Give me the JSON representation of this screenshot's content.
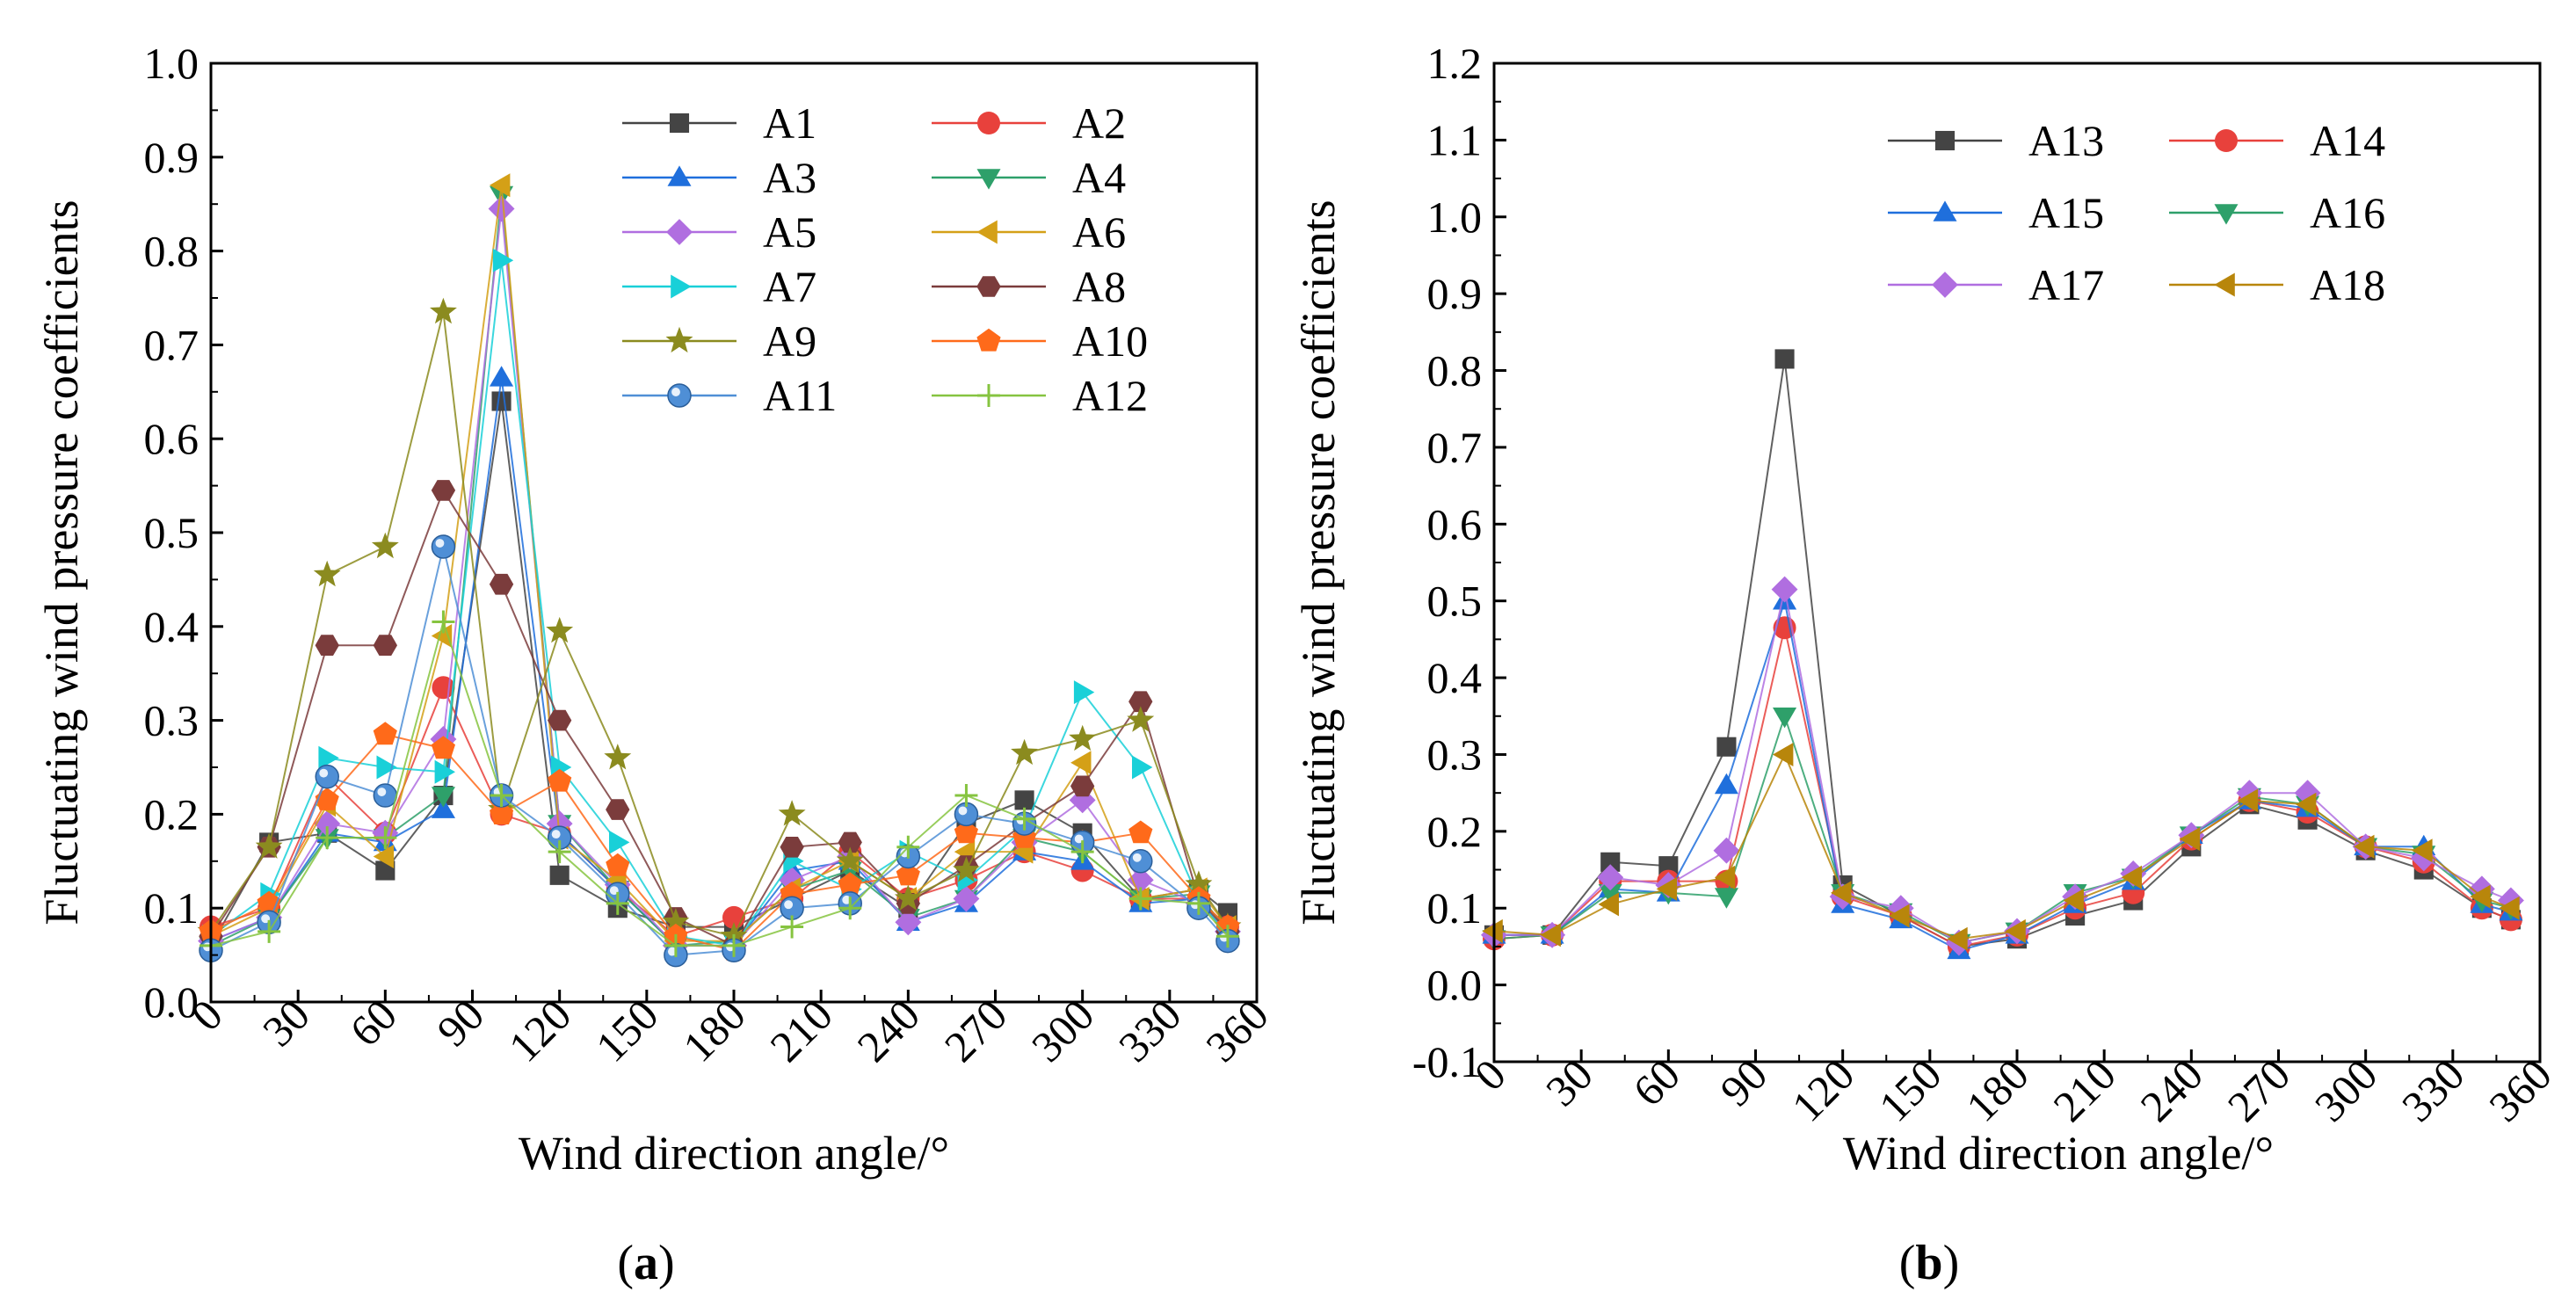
{
  "chart_data": [
    {
      "type": "line",
      "panel_label": "(a)",
      "panel_letter": "a",
      "xlabel": "Wind direction angle/°",
      "ylabel": "Fluctuating wind pressure coefficients",
      "xlim": [
        0,
        360
      ],
      "ylim": [
        0,
        1.0
      ],
      "xticks": [
        "0",
        "30",
        "60",
        "90",
        "120",
        "150",
        "180",
        "210",
        "240",
        "270",
        "300",
        "330",
        "360"
      ],
      "yticks": [
        "0.0",
        "0.1",
        "0.2",
        "0.3",
        "0.4",
        "0.5",
        "0.6",
        "0.7",
        "0.8",
        "0.9",
        "1.0"
      ],
      "x": [
        0,
        20,
        40,
        60,
        80,
        100,
        120,
        140,
        160,
        180,
        200,
        220,
        240,
        260,
        280,
        300,
        320,
        340,
        350
      ],
      "legend_position": "top-right",
      "series": [
        {
          "name": "A1",
          "color": "#444444",
          "marker": "square",
          "values": [
            0.06,
            0.17,
            0.18,
            0.14,
            0.22,
            0.64,
            0.135,
            0.1,
            0.08,
            0.08,
            0.11,
            0.14,
            0.1,
            0.19,
            0.215,
            0.18,
            0.11,
            0.12,
            0.095
          ]
        },
        {
          "name": "A2",
          "color": "#e8413c",
          "marker": "circle",
          "values": [
            0.08,
            0.1,
            0.24,
            0.18,
            0.335,
            0.2,
            0.18,
            0.12,
            0.07,
            0.09,
            0.11,
            0.16,
            0.11,
            0.13,
            0.16,
            0.14,
            0.11,
            0.11,
            0.08
          ]
        },
        {
          "name": "A3",
          "color": "#1f6fdc",
          "marker": "triangle-up",
          "values": [
            0.065,
            0.09,
            0.18,
            0.17,
            0.205,
            0.665,
            0.18,
            0.12,
            0.06,
            0.06,
            0.14,
            0.15,
            0.085,
            0.105,
            0.16,
            0.15,
            0.105,
            0.11,
            0.07
          ]
        },
        {
          "name": "A4",
          "color": "#2ea06a",
          "marker": "triangle-down",
          "values": [
            0.06,
            0.09,
            0.175,
            0.175,
            0.22,
            0.86,
            0.19,
            0.12,
            0.06,
            0.065,
            0.12,
            0.14,
            0.09,
            0.11,
            0.175,
            0.16,
            0.11,
            0.115,
            0.075
          ]
        },
        {
          "name": "A5",
          "color": "#b06ee0",
          "marker": "diamond",
          "values": [
            0.065,
            0.09,
            0.19,
            0.18,
            0.28,
            0.845,
            0.19,
            0.125,
            0.06,
            0.06,
            0.13,
            0.155,
            0.085,
            0.11,
            0.17,
            0.215,
            0.13,
            0.105,
            0.075
          ]
        },
        {
          "name": "A6",
          "color": "#d4a017",
          "marker": "triangle-left",
          "values": [
            0.07,
            0.1,
            0.21,
            0.155,
            0.39,
            0.87,
            0.175,
            0.13,
            0.065,
            0.065,
            0.12,
            0.15,
            0.11,
            0.16,
            0.16,
            0.255,
            0.11,
            0.12,
            0.08
          ]
        },
        {
          "name": "A7",
          "color": "#19d0d8",
          "marker": "triangle-right",
          "values": [
            0.07,
            0.115,
            0.26,
            0.25,
            0.245,
            0.79,
            0.25,
            0.17,
            0.07,
            0.06,
            0.15,
            0.12,
            0.16,
            0.13,
            0.185,
            0.33,
            0.25,
            0.11,
            0.07
          ]
        },
        {
          "name": "A8",
          "color": "#7b3c3c",
          "marker": "hexagon",
          "values": [
            0.07,
            0.165,
            0.38,
            0.38,
            0.545,
            0.445,
            0.3,
            0.205,
            0.09,
            0.06,
            0.165,
            0.17,
            0.105,
            0.145,
            0.19,
            0.23,
            0.32,
            0.11,
            0.075
          ]
        },
        {
          "name": "A9",
          "color": "#8b8b1f",
          "marker": "star",
          "values": [
            0.075,
            0.165,
            0.455,
            0.485,
            0.735,
            0.205,
            0.395,
            0.26,
            0.085,
            0.07,
            0.2,
            0.15,
            0.11,
            0.14,
            0.265,
            0.28,
            0.3,
            0.125,
            0.08
          ]
        },
        {
          "name": "A10",
          "color": "#ff6a1a",
          "marker": "pentagon",
          "values": [
            0.075,
            0.105,
            0.215,
            0.285,
            0.27,
            0.2,
            0.235,
            0.145,
            0.07,
            0.055,
            0.115,
            0.125,
            0.135,
            0.18,
            0.175,
            0.17,
            0.18,
            0.11,
            0.08
          ]
        },
        {
          "name": "A11",
          "color": "#4f8fd6",
          "marker": "sphere",
          "values": [
            0.055,
            0.085,
            0.24,
            0.22,
            0.485,
            0.22,
            0.175,
            0.115,
            0.05,
            0.055,
            0.1,
            0.105,
            0.155,
            0.2,
            0.19,
            0.17,
            0.15,
            0.1,
            0.065
          ]
        },
        {
          "name": "A12",
          "color": "#86c440",
          "marker": "plus",
          "values": [
            0.06,
            0.075,
            0.175,
            0.175,
            0.405,
            0.22,
            0.16,
            0.105,
            0.06,
            0.06,
            0.08,
            0.1,
            0.165,
            0.22,
            0.195,
            0.16,
            0.11,
            0.105,
            0.07
          ]
        }
      ]
    },
    {
      "type": "line",
      "panel_label": "(b)",
      "panel_letter": "b",
      "xlabel": "Wind direction angle/°",
      "ylabel": "Fluctuating wind pressure coefficients",
      "xlim": [
        0,
        360
      ],
      "ylim": [
        -0.1,
        1.2
      ],
      "xticks": [
        "0",
        "30",
        "60",
        "90",
        "120",
        "150",
        "180",
        "210",
        "240",
        "270",
        "300",
        "330",
        "360"
      ],
      "yticks": [
        "-0.1",
        "0.0",
        "0.1",
        "0.2",
        "0.3",
        "0.4",
        "0.5",
        "0.6",
        "0.7",
        "0.8",
        "0.9",
        "1.0",
        "1.1",
        "1.2"
      ],
      "x": [
        0,
        20,
        40,
        60,
        80,
        100,
        120,
        140,
        160,
        180,
        200,
        220,
        240,
        260,
        280,
        300,
        320,
        340,
        350
      ],
      "legend_position": "top-right",
      "series": [
        {
          "name": "A13",
          "color": "#444444",
          "marker": "square",
          "values": [
            0.065,
            0.065,
            0.16,
            0.155,
            0.31,
            0.815,
            0.13,
            0.09,
            0.05,
            0.06,
            0.09,
            0.11,
            0.18,
            0.235,
            0.215,
            0.175,
            0.15,
            0.1,
            0.085
          ]
        },
        {
          "name": "A14",
          "color": "#e8413c",
          "marker": "circle",
          "values": [
            0.06,
            0.065,
            0.135,
            0.135,
            0.135,
            0.465,
            0.115,
            0.09,
            0.05,
            0.065,
            0.1,
            0.12,
            0.19,
            0.24,
            0.225,
            0.18,
            0.16,
            0.1,
            0.085
          ]
        },
        {
          "name": "A15",
          "color": "#1f6fdc",
          "marker": "triangle-up",
          "values": [
            0.065,
            0.065,
            0.125,
            0.12,
            0.26,
            0.5,
            0.105,
            0.085,
            0.045,
            0.065,
            0.105,
            0.135,
            0.195,
            0.24,
            0.23,
            0.18,
            0.18,
            0.105,
            0.095
          ]
        },
        {
          "name": "A16",
          "color": "#2ea06a",
          "marker": "triangle-down",
          "values": [
            0.06,
            0.065,
            0.12,
            0.12,
            0.115,
            0.35,
            0.12,
            0.095,
            0.055,
            0.07,
            0.12,
            0.14,
            0.195,
            0.245,
            0.235,
            0.18,
            0.17,
            0.11,
            0.1
          ]
        },
        {
          "name": "A17",
          "color": "#b06ee0",
          "marker": "diamond",
          "values": [
            0.065,
            0.065,
            0.14,
            0.13,
            0.175,
            0.515,
            0.115,
            0.1,
            0.055,
            0.07,
            0.115,
            0.145,
            0.195,
            0.25,
            0.25,
            0.18,
            0.165,
            0.125,
            0.11
          ]
        },
        {
          "name": "A18",
          "color": "#b8860b",
          "marker": "triangle-left",
          "values": [
            0.07,
            0.065,
            0.105,
            0.125,
            0.14,
            0.3,
            0.12,
            0.09,
            0.06,
            0.07,
            0.11,
            0.14,
            0.19,
            0.24,
            0.235,
            0.18,
            0.175,
            0.115,
            0.1
          ]
        }
      ]
    }
  ]
}
